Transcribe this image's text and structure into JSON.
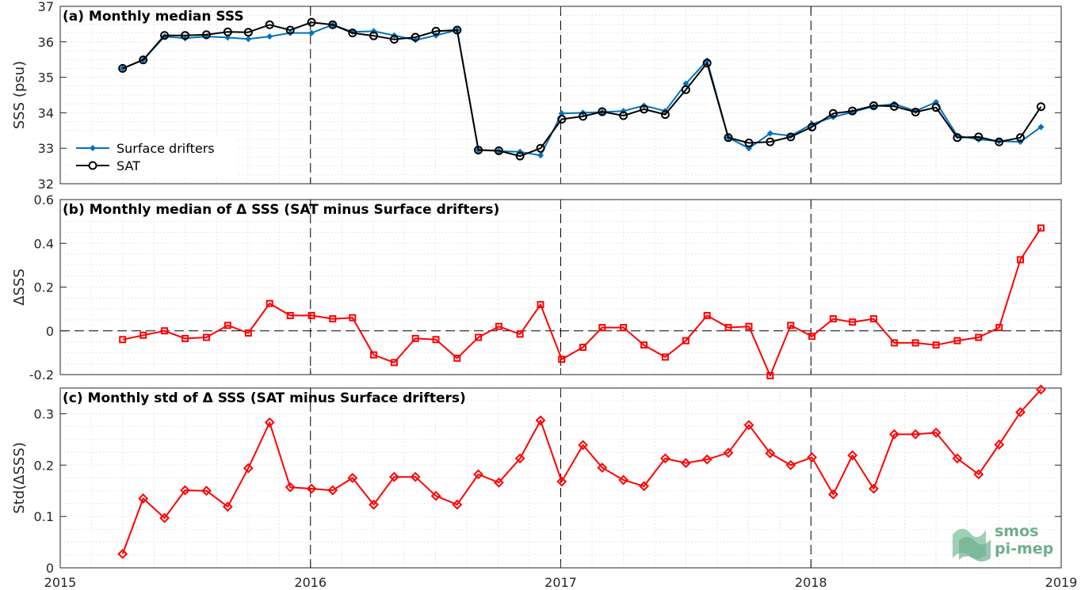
{
  "colors": {
    "drifters": "#0072bd",
    "sat": "#000000",
    "delta": "#ff0000",
    "grid": "#c8c8c8",
    "logo": "#6fae8e"
  },
  "x_axis": {
    "range": [
      2015,
      2019
    ],
    "tick_labels": [
      "2015",
      "2016",
      "2017",
      "2018",
      "2019"
    ]
  },
  "chart_data": [
    {
      "type": "line",
      "title": "(a) Monthly median SSS",
      "ylabel": "SSS (psu)",
      "ylim": [
        32,
        37
      ],
      "yticks": [
        "32",
        "33",
        "34",
        "35",
        "36",
        "37"
      ],
      "grid": true,
      "legend_placement": "lower-left",
      "x": [
        2015.2493,
        2015.3316,
        2015.4167,
        2015.4991,
        2015.5842,
        2015.6694,
        2015.7517,
        2015.8368,
        2015.9192,
        2016.0042,
        2016.0888,
        2016.168,
        2016.2527,
        2016.3347,
        2016.4194,
        2016.5014,
        2016.5861,
        2016.6708,
        2016.7527,
        2016.8374,
        2016.9194,
        2017.0041,
        2017.089,
        2017.1658,
        2017.2507,
        2017.3329,
        2017.4178,
        2017.5,
        2017.5849,
        2017.6699,
        2017.7521,
        2017.837,
        2017.9192,
        2018.0041,
        2018.089,
        2018.1658,
        2018.2507,
        2018.3329,
        2018.4178,
        2018.5,
        2018.5849,
        2018.6699,
        2018.7521,
        2018.837,
        2018.9192
      ],
      "series": [
        {
          "name": "Surface drifters",
          "marker": "filled-diamond",
          "values": [
            35.25,
            35.49,
            36.15,
            36.1,
            36.15,
            36.12,
            36.08,
            36.15,
            36.25,
            36.25,
            36.48,
            36.28,
            36.3,
            36.18,
            36.05,
            36.18,
            36.33,
            32.95,
            32.92,
            32.9,
            32.8,
            33.98,
            34.0,
            34.02,
            34.05,
            34.2,
            34.05,
            34.82,
            35.47,
            33.3,
            33.0,
            33.42,
            33.35,
            33.68,
            33.88,
            34.02,
            34.18,
            34.25,
            34.05,
            34.3,
            33.35,
            33.25,
            33.2,
            33.18,
            33.6
          ]
        },
        {
          "name": "SAT",
          "marker": "open-circle",
          "values": [
            35.25,
            35.49,
            36.18,
            36.18,
            36.2,
            36.28,
            36.27,
            36.48,
            36.33,
            36.55,
            36.48,
            36.25,
            36.17,
            36.07,
            36.13,
            36.3,
            36.33,
            32.95,
            32.93,
            32.78,
            33.0,
            33.82,
            33.9,
            34.03,
            33.92,
            34.1,
            33.95,
            34.65,
            35.4,
            33.3,
            33.15,
            33.18,
            33.32,
            33.6,
            33.98,
            34.05,
            34.2,
            34.18,
            34.02,
            34.15,
            33.3,
            33.32,
            33.18,
            33.3,
            34.17
          ]
        }
      ]
    },
    {
      "type": "line",
      "title": "(b) Monthly median of Δ SSS (SAT minus Surface drifters)",
      "ylabel": "ΔSSS",
      "ylim": [
        -0.2,
        0.6
      ],
      "yticks": [
        "-0.2",
        "0",
        "0.2",
        "0.4",
        "0.6"
      ],
      "grid": true,
      "zero_line": true,
      "series": [
        {
          "name": "",
          "marker": "open-square",
          "values": [
            -0.04,
            -0.02,
            0.0,
            -0.035,
            -0.03,
            0.025,
            -0.01,
            0.125,
            0.07,
            0.07,
            0.055,
            0.06,
            -0.11,
            -0.145,
            -0.035,
            -0.04,
            -0.125,
            -0.03,
            0.02,
            -0.015,
            0.12,
            -0.13,
            -0.075,
            0.015,
            0.015,
            -0.065,
            -0.12,
            -0.045,
            0.07,
            0.015,
            0.02,
            -0.205,
            0.025,
            -0.025,
            0.055,
            0.04,
            0.055,
            -0.055,
            -0.055,
            -0.065,
            -0.045,
            -0.03,
            0.015,
            0.325,
            0.47
          ]
        }
      ]
    },
    {
      "type": "line",
      "title": "(c) Monthly std of Δ SSS (SAT minus Surface drifters)",
      "ylabel": "Std(ΔSSS)",
      "ylim": [
        0,
        0.35
      ],
      "yticks": [
        "0",
        "0.1",
        "0.2",
        "0.3"
      ],
      "grid": true,
      "series": [
        {
          "name": "",
          "marker": "open-diamond",
          "values": [
            0.027,
            0.135,
            0.097,
            0.151,
            0.15,
            0.119,
            0.194,
            0.283,
            0.157,
            0.154,
            0.151,
            0.175,
            0.123,
            0.177,
            0.177,
            0.14,
            0.123,
            0.182,
            0.166,
            0.213,
            0.287,
            0.168,
            0.239,
            0.195,
            0.171,
            0.159,
            0.213,
            0.204,
            0.211,
            0.224,
            0.278,
            0.223,
            0.2,
            0.215,
            0.143,
            0.219,
            0.154,
            0.26,
            0.26,
            0.263,
            0.213,
            0.182,
            0.24,
            0.303,
            0.347
          ]
        }
      ]
    }
  ],
  "logo": {
    "line1": "smos",
    "line2": "pi-mep"
  }
}
